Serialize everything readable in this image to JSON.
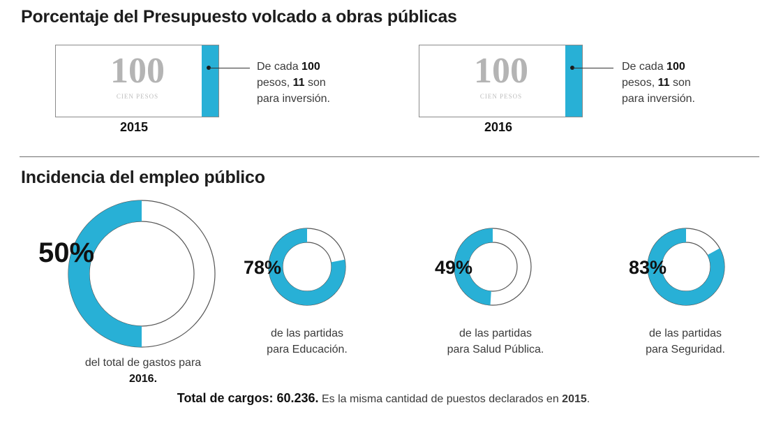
{
  "section1": {
    "title": "Porcentaje del Presupuesto volcado a obras públicas",
    "bills": [
      {
        "number": "100",
        "word": "CIEN PESOS",
        "year": "2015",
        "note_pre": "De cada ",
        "note_b1": "100",
        "note_mid": "pesos, ",
        "note_b2": "11",
        "note_mid2": " son",
        "note_end": "para inversión."
      },
      {
        "number": "100",
        "word": "CIEN PESOS",
        "year": "2016",
        "note_pre": "De cada ",
        "note_b1": "100",
        "note_mid": "pesos, ",
        "note_b2": "11",
        "note_mid2": " son",
        "note_end": "para inversión."
      }
    ]
  },
  "section2": {
    "title": "Incidencia del empleo público",
    "donuts": [
      {
        "value": 50,
        "label": "50%",
        "caption_line1": "del total de gastos para",
        "caption_line2": "2016."
      },
      {
        "value": 78,
        "label": "78%",
        "caption_line1": "de las partidas",
        "caption_line2": "para Educación."
      },
      {
        "value": 49,
        "label": "49%",
        "caption_line1": "de las partidas",
        "caption_line2": "para Salud Pública."
      },
      {
        "value": 83,
        "label": "83%",
        "caption_line1": "de las partidas",
        "caption_line2": "para Seguridad."
      }
    ]
  },
  "footer": {
    "bold": "Total de cargos: 60.236.",
    "text": " Es la misma cantidad de puestos declarados en ",
    "year": "2015",
    "end": "."
  },
  "colors": {
    "accent": "#28b0d6",
    "ring_outline": "#555555",
    "bill_border": "#8a8a8a"
  }
}
